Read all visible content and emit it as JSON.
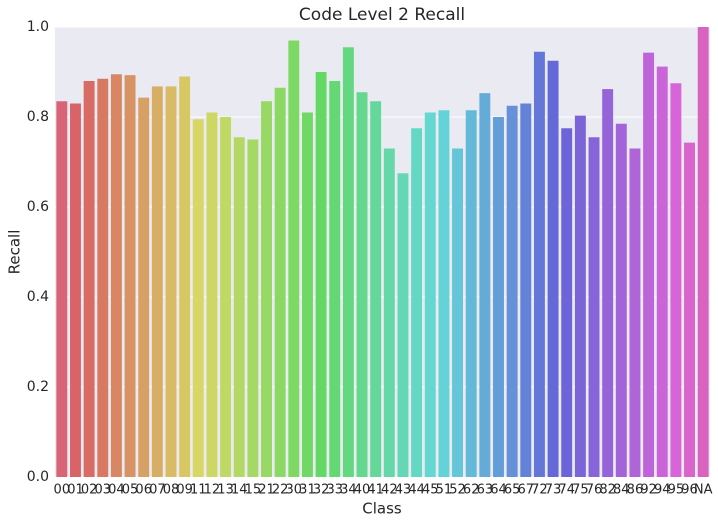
{
  "chart_data": {
    "type": "bar",
    "title": "Code Level 2 Recall",
    "x_label": "Class",
    "y_label": "Recall",
    "categories": [
      "00",
      "01",
      "02",
      "03",
      "04",
      "05",
      "06",
      "07",
      "08",
      "09",
      "11",
      "12",
      "13",
      "14",
      "15",
      "21",
      "22",
      "30",
      "31",
      "32",
      "33",
      "34",
      "40",
      "41",
      "42",
      "43",
      "44",
      "45",
      "51",
      "52",
      "62",
      "63",
      "64",
      "65",
      "67",
      "72",
      "73",
      "74",
      "75",
      "76",
      "82",
      "84",
      "86",
      "92",
      "94",
      "95",
      "96",
      "NA"
    ],
    "values": [
      0.835,
      0.83,
      0.88,
      0.885,
      0.895,
      0.893,
      0.843,
      0.868,
      0.868,
      0.89,
      0.795,
      0.81,
      0.8,
      0.755,
      0.75,
      0.835,
      0.865,
      0.97,
      0.81,
      0.9,
      0.88,
      0.955,
      0.855,
      0.835,
      0.73,
      0.675,
      0.775,
      0.81,
      0.815,
      0.73,
      0.815,
      0.853,
      0.8,
      0.825,
      0.83,
      0.945,
      0.925,
      0.775,
      0.803,
      0.755,
      0.862,
      0.785,
      0.73,
      0.943,
      0.912,
      0.875,
      0.743,
      1.0
    ],
    "palette": "husl",
    "ylim": [
      0,
      1
    ],
    "yticks": [
      {
        "value": 0,
        "label": "0.0"
      },
      0.2,
      0.4,
      0.6,
      0.8,
      {
        "value": 1,
        "label": "1.0"
      }
    ],
    "grid": true
  }
}
